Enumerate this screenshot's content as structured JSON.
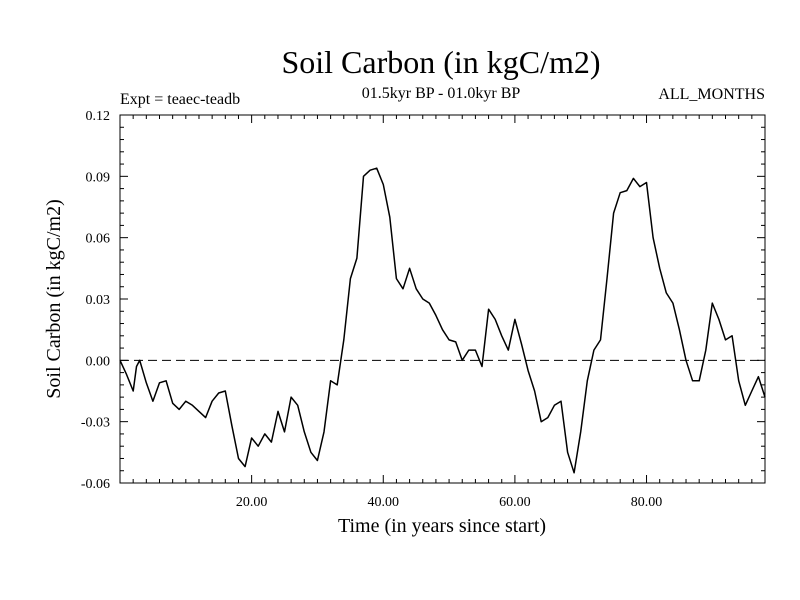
{
  "chart_data": {
    "type": "line",
    "title": "Soil Carbon (in kgC/m2)",
    "subtitle": "01.5kyr BP - 01.0kyr BP",
    "left_note": "Expt = teaec-teadb",
    "right_note": "ALL_MONTHS",
    "xlabel": "Time (in years since start)",
    "ylabel": "Soil Carbon (in kgC/m2)",
    "xlim": [
      0,
      98
    ],
    "ylim": [
      -0.06,
      0.12
    ],
    "xticks": [
      20,
      40,
      60,
      80
    ],
    "xtick_labels": [
      "20.00",
      "40.00",
      "60.00",
      "80.00"
    ],
    "yticks": [
      -0.06,
      -0.03,
      0.0,
      0.03,
      0.06,
      0.09,
      0.12
    ],
    "ytick_labels": [
      "-0.06",
      "-0.03",
      "0.00",
      "0.03",
      "0.06",
      "0.09",
      "0.12"
    ],
    "zero_line": true,
    "series": [
      {
        "name": "teaec-teadb",
        "x": [
          0,
          1,
          2,
          2.5,
          3,
          4,
          5,
          6,
          7,
          8,
          9,
          10,
          11,
          12,
          13,
          14,
          15,
          16,
          17,
          18,
          19,
          20,
          21,
          22,
          23,
          24,
          25,
          26,
          27,
          28,
          29,
          30,
          31,
          32,
          33,
          34,
          35,
          36,
          37,
          38,
          39,
          40,
          41,
          42,
          43,
          44,
          45,
          46,
          47,
          48,
          49,
          50,
          51,
          52,
          53,
          54,
          55,
          56,
          57,
          58,
          59,
          60,
          61,
          62,
          63,
          64,
          65,
          66,
          67,
          68,
          69,
          70,
          71,
          72,
          73,
          74,
          75,
          76,
          77,
          78,
          79,
          80,
          81,
          82,
          83,
          84,
          85,
          86,
          87,
          88,
          89,
          90,
          91,
          92,
          93,
          94,
          95,
          96,
          97,
          98
        ],
        "values": [
          0.0,
          -0.007,
          -0.015,
          -0.003,
          0.0,
          -0.011,
          -0.02,
          -0.011,
          -0.01,
          -0.021,
          -0.024,
          -0.02,
          -0.022,
          -0.025,
          -0.028,
          -0.02,
          -0.016,
          -0.015,
          -0.032,
          -0.048,
          -0.052,
          -0.038,
          -0.042,
          -0.036,
          -0.04,
          -0.025,
          -0.035,
          -0.018,
          -0.022,
          -0.035,
          -0.045,
          -0.049,
          -0.035,
          -0.01,
          -0.012,
          0.01,
          0.04,
          0.05,
          0.09,
          0.093,
          0.094,
          0.086,
          0.07,
          0.04,
          0.035,
          0.045,
          0.035,
          0.03,
          0.028,
          0.022,
          0.015,
          0.01,
          0.009,
          0.0,
          0.005,
          0.005,
          -0.003,
          0.025,
          0.02,
          0.012,
          0.005,
          0.02,
          0.008,
          -0.005,
          -0.015,
          -0.03,
          -0.028,
          -0.022,
          -0.02,
          -0.045,
          -0.055,
          -0.035,
          -0.01,
          0.005,
          0.01,
          0.04,
          0.072,
          0.082,
          0.083,
          0.089,
          0.085,
          0.087,
          0.06,
          0.045,
          0.033,
          0.028,
          0.015,
          0.0,
          -0.01,
          -0.01,
          0.005,
          0.028,
          0.02,
          0.01,
          0.012,
          -0.01,
          -0.022,
          -0.015,
          -0.008,
          -0.018
        ]
      }
    ]
  }
}
